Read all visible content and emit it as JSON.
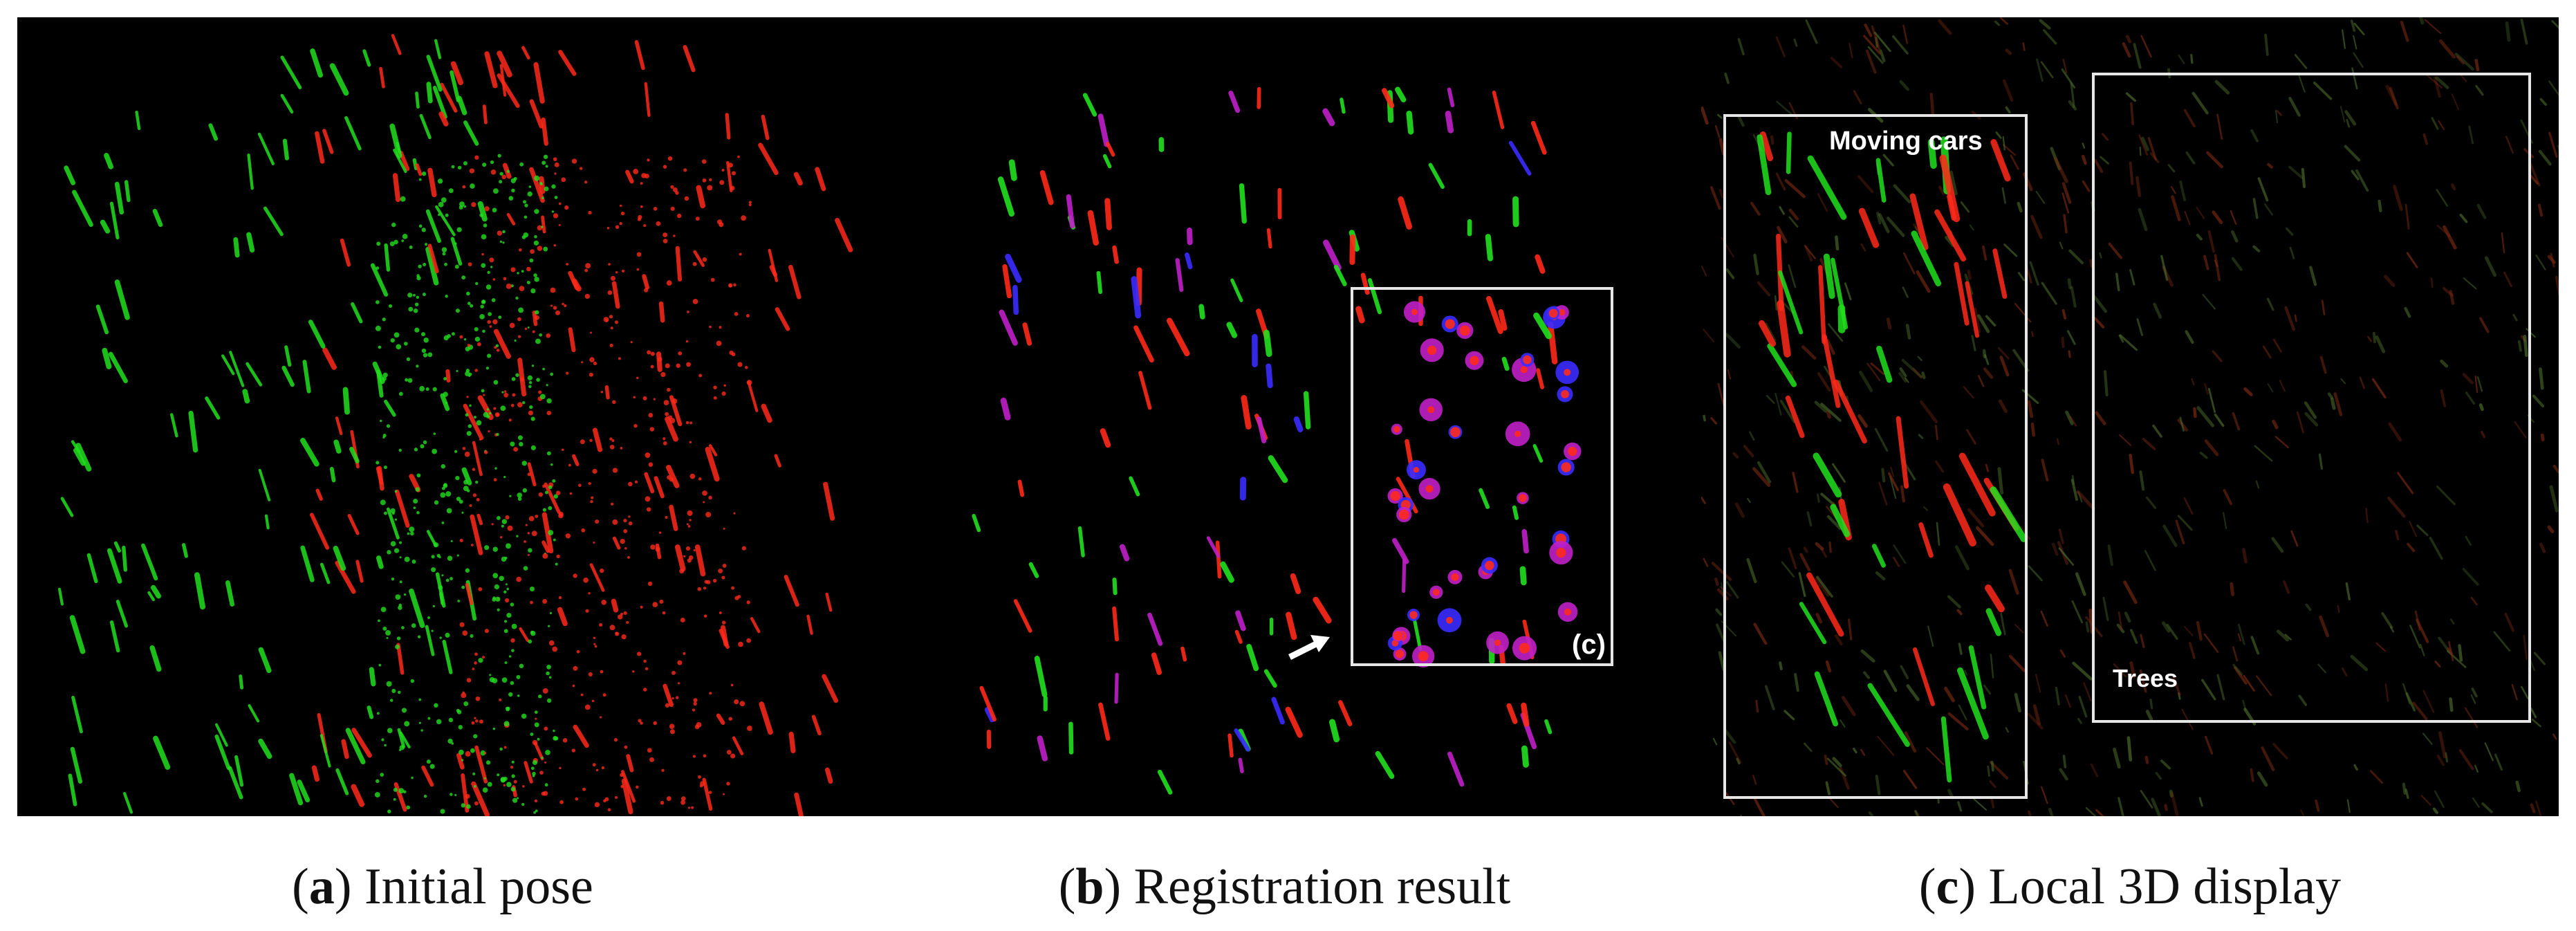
{
  "panels": [
    {
      "id": "a",
      "letter": "a",
      "caption": "Initial pose"
    },
    {
      "id": "b",
      "letter": "b",
      "caption": "Registration result",
      "inset_label": "(c)"
    },
    {
      "id": "c",
      "letter": "c",
      "caption": "Local 3D display",
      "box_labels": {
        "moving_cars": "Moving cars",
        "trees": "Trees"
      }
    }
  ],
  "colors": {
    "background": "#000000",
    "green_points": "#22e01e",
    "red_points": "#ff2a1a",
    "blue_points": "#3a2cff",
    "magenta_points": "#c020c8",
    "frame": "#e6e6e6"
  }
}
